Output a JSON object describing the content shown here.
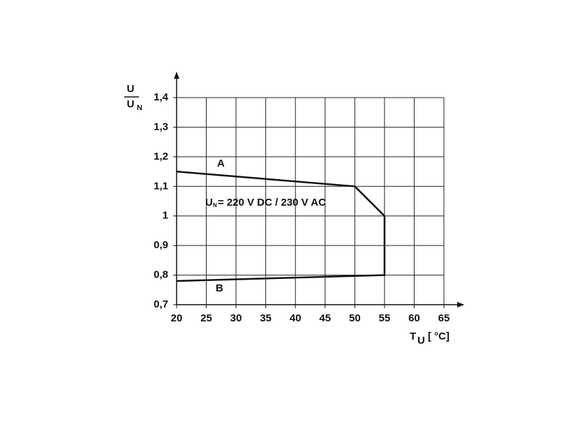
{
  "chart_data": {
    "type": "line",
    "x": [
      20,
      50,
      55,
      55,
      20
    ],
    "values": [
      1.15,
      1.1,
      1.0,
      0.8,
      0.78
    ],
    "color": "#111111",
    "xlim": [
      20,
      65
    ],
    "xticks": [
      20,
      25,
      30,
      35,
      40,
      45,
      50,
      55,
      60,
      65
    ],
    "ylim": [
      0.7,
      1.4
    ],
    "yticks": [
      {
        "value": 0.7,
        "label": "0,7"
      },
      {
        "value": 0.8,
        "label": "0,8"
      },
      {
        "value": 0.9,
        "label": "0,9"
      },
      1,
      {
        "value": 1.1,
        "label": "1,1"
      },
      {
        "value": 1.2,
        "label": "1,2"
      },
      {
        "value": 1.3,
        "label": "1,3"
      },
      {
        "value": 1.4,
        "label": "1,4"
      }
    ],
    "grid": true,
    "x_label": {
      "symbol": "T",
      "subscript": "U",
      "unit": "[ °C]"
    },
    "y_label": {
      "numerator": "U",
      "denominator": "U",
      "denominator_subscript": "N"
    },
    "annotations": {
      "curve_a": "A",
      "curve_b": "B",
      "rating_symbol": "U",
      "rating_subscript": "N",
      "rating_text": "= 220 V DC / 230 V AC"
    }
  }
}
